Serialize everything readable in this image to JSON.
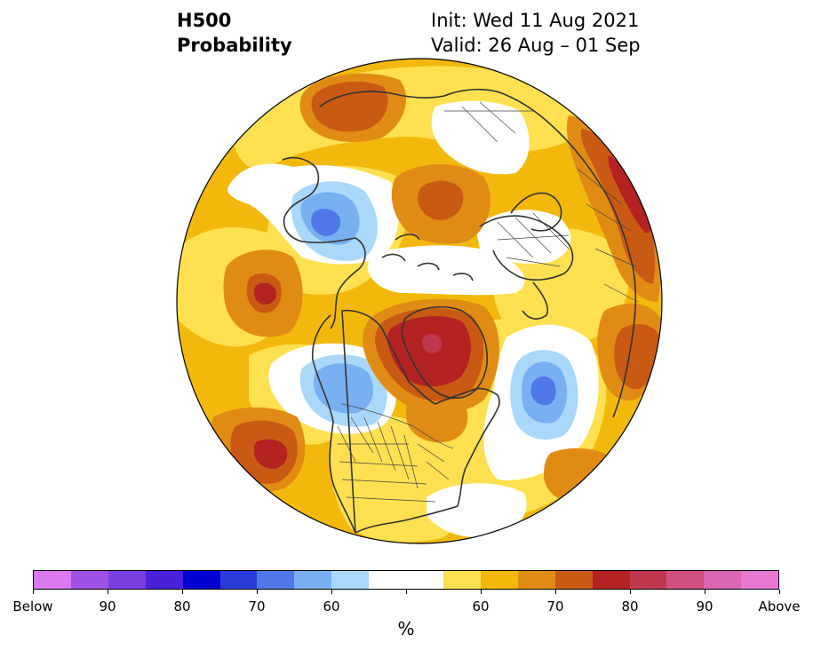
{
  "header": {
    "title_line1": "H500",
    "title_line2": "Probability",
    "init_text": "Init: Wed 11 Aug 2021",
    "valid_text": "Valid: 26 Aug – 01 Sep"
  },
  "colorbar": {
    "colors": [
      "#dc78f0",
      "#a052e6",
      "#7a3fe0",
      "#4a20d8",
      "#0000d0",
      "#2a3cd8",
      "#5078e8",
      "#78b0f2",
      "#aad8fa",
      "#ffffff",
      "#ffffff",
      "#ffe050",
      "#f2b90c",
      "#e08c14",
      "#c85a14",
      "#b42222",
      "#c03850",
      "#d05080",
      "#dc64b4",
      "#e678d2"
    ],
    "labels": [
      "Below",
      "90",
      "80",
      "70",
      "60",
      "60",
      "70",
      "80",
      "90",
      "Above"
    ],
    "unit": "%"
  },
  "map": {
    "projection": "north-polar-stereographic",
    "background_color": "#f2b90c",
    "features": [
      "coastlines",
      "country-borders",
      "us-state-borders"
    ]
  }
}
